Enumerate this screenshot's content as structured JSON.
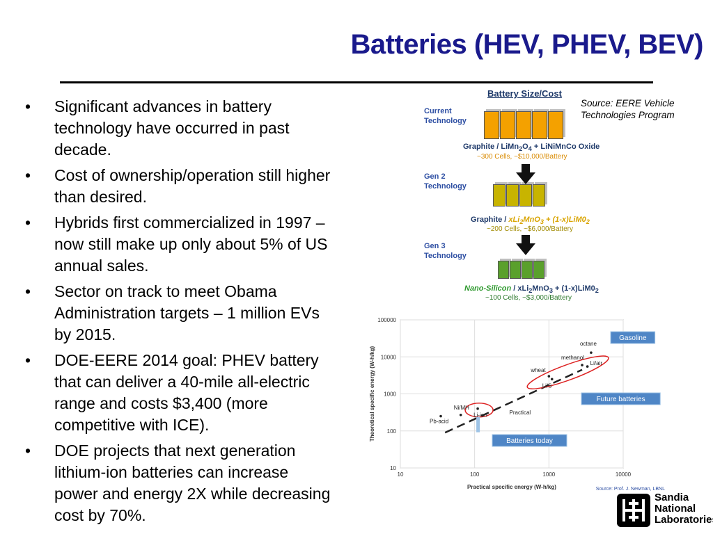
{
  "slide": {
    "title": "Batteries (HEV, PHEV, BEV)",
    "source_note": "Source: EERE Vehicle Technologies Program",
    "bullets": [
      "Significant advances in battery technology have occurred in past decade.",
      "Cost of ownership/operation still higher than desired.",
      "Hybrids first commercialized in 1997 – now still make up only about 5% of US annual sales.",
      "Sector on track to meet Obama Administration targets – 1 million EVs by 2015.",
      "DOE-EERE 2014 goal: PHEV battery that can deliver a 40-mile all-electric range and costs $3,400 (more competitive with ICE).",
      "DOE projects that next generation lithium-ion batteries can increase power and energy 2X while decreasing cost by 70%."
    ],
    "bullet_glyph": "•"
  },
  "battery_figure": {
    "title": "Battery Size/Cost",
    "generations": [
      {
        "label_line1": "Current",
        "label_line2": "Technology",
        "chem_a": "Graphite / LiMn",
        "chem_sub1": "2",
        "chem_b": "O",
        "chem_sub2": "4",
        "chem_c": " + LiNiMnCo Oxide",
        "cells": "~300 Cells, ~$10,000/Battery",
        "color": "#f4a100"
      },
      {
        "label_line1": "Gen 2",
        "label_line2": "Technology",
        "chem_a": "Graphite / ",
        "chem_hl": "xLi",
        "chem_sub1": "2",
        "chem_b": "MnO",
        "chem_sub2": "3",
        "chem_c": " + (1-x)LiM0",
        "chem_sub3": "2",
        "cells": "~200 Cells, ~$6,000/Battery",
        "color": "#c8b400"
      },
      {
        "label_line1": "Gen 3",
        "label_line2": "Technology",
        "chem_hl": "Nano-Silicon",
        "chem_a": " / xLi",
        "chem_sub1": "2",
        "chem_b": "MnO",
        "chem_sub2": "3",
        "chem_c": " + (1-x)LiM0",
        "chem_sub3": "2",
        "cells": "~100 Cells, ~$3,000/Battery",
        "color": "#5aa02c"
      }
    ]
  },
  "chart_data": {
    "type": "scatter",
    "xscale": "log",
    "yscale": "log",
    "xlim": [
      10,
      10000
    ],
    "ylim": [
      10,
      100000
    ],
    "xticks": [
      "10",
      "100",
      "1000",
      "10000"
    ],
    "yticks": [
      "10",
      "100",
      "1000",
      "10000",
      "100000"
    ],
    "xlabel": "Practical specific energy (W-h/kg)",
    "ylabel": "Theoretical specific energy (W-h/kg)",
    "points": [
      {
        "label": "Pb-acid",
        "x": 35,
        "y": 250
      },
      {
        "label": "Ni/MH",
        "x": 65,
        "y": 270
      },
      {
        "label": "Li-ion",
        "x": 110,
        "y": 400
      },
      {
        "label": "Practical",
        "x": 380,
        "y": 280
      },
      {
        "label": "wheat",
        "x": 1000,
        "y": 3000
      },
      {
        "label": "Li/S",
        "x": 1100,
        "y": 2500
      },
      {
        "label": "methanol",
        "x": 2800,
        "y": 6000
      },
      {
        "label": "Li/air",
        "x": 3300,
        "y": 5500
      },
      {
        "label": "octane",
        "x": 3700,
        "y": 13000
      }
    ],
    "trend": {
      "x": [
        40,
        2800
      ],
      "y": [
        90,
        4500
      ]
    },
    "callouts": [
      "Gasoline",
      "Future batteries",
      "Batteries today"
    ],
    "source": "Source: Prof. J. Newman, LBNL",
    "grid": true
  },
  "logo": {
    "line1": "Sandia",
    "line2": "National",
    "line3": "Laboratories"
  }
}
